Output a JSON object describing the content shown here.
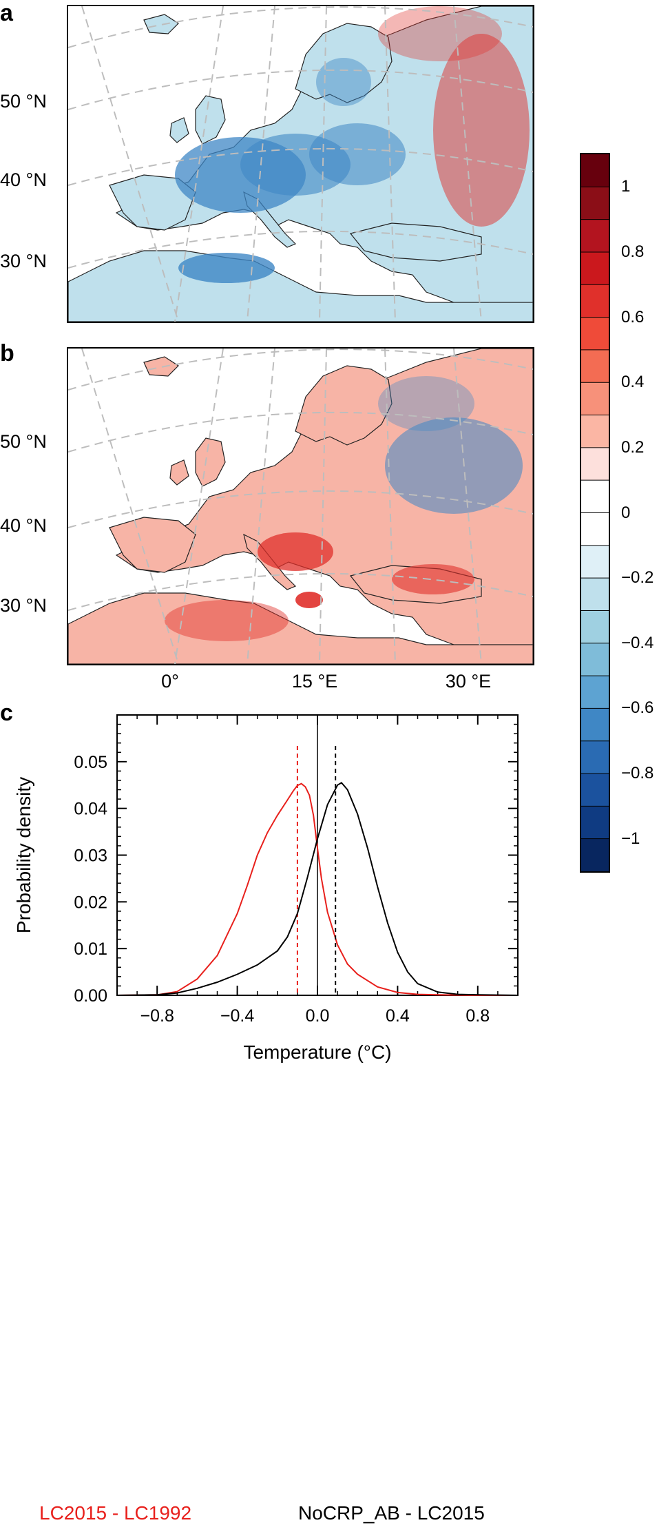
{
  "panels": {
    "a": {
      "letter": "a"
    },
    "b": {
      "letter": "b"
    },
    "c": {
      "letter": "c"
    }
  },
  "maps": {
    "lat_labels": [
      "50 °N",
      "40 °N",
      "30 °N"
    ],
    "lon_labels": [
      "0°",
      "15 °E",
      "30 °E"
    ]
  },
  "colorbar": {
    "labels": [
      "1",
      "0.8",
      "0.6",
      "0.4",
      "0.2",
      "0",
      "−0.2",
      "−0.4",
      "−0.6",
      "−0.8",
      "−1"
    ],
    "colors": [
      "#67000d",
      "#8b0e17",
      "#b3141f",
      "#cb181d",
      "#e0302b",
      "#ef4b39",
      "#f36c53",
      "#f7917a",
      "#fbb6a4",
      "#fde0dc",
      "#ffffff",
      "#ffffff",
      "#dff0f7",
      "#bfe0ec",
      "#9fd0e1",
      "#7fbcd9",
      "#5da3d2",
      "#3f87c5",
      "#2a6bb3",
      "#1b529e",
      "#0f3b82",
      "#08265f"
    ],
    "map_colors": {
      "land_warm": "#f7b4a6",
      "land_cool": "#bfe0ec",
      "cool_strong": "#3f87c5",
      "warm_strong": "#e0302b",
      "sea": "#ffffff",
      "grid": "#bdbdbd",
      "coast": "#222222"
    }
  },
  "chart_data": {
    "type": "line",
    "ylabel": "Probability density",
    "xlabel": "Temperature (°C)",
    "xlim": [
      -1.0,
      1.0
    ],
    "ylim": [
      0.0,
      0.06
    ],
    "xticks": [
      -0.8,
      -0.4,
      0.0,
      0.4,
      0.8
    ],
    "xtick_labels": [
      "−0.8",
      "−0.4",
      "0.0",
      "0.4",
      "0.8"
    ],
    "yticks": [
      0.0,
      0.01,
      0.02,
      0.03,
      0.04,
      0.05
    ],
    "ytick_labels": [
      "0.00",
      "0.01",
      "0.02",
      "0.03",
      "0.04",
      "0.05"
    ],
    "grid": false,
    "series": [
      {
        "name": "LC2015 - LC1992",
        "color": "#e8201c",
        "mean": -0.1,
        "x": [
          -1.0,
          -0.8,
          -0.7,
          -0.6,
          -0.5,
          -0.4,
          -0.35,
          -0.3,
          -0.25,
          -0.2,
          -0.15,
          -0.12,
          -0.1,
          -0.08,
          -0.06,
          -0.04,
          -0.02,
          0.0,
          0.02,
          0.05,
          0.1,
          0.15,
          0.2,
          0.3,
          0.4,
          0.5,
          0.6,
          0.8,
          1.0
        ],
        "values": [
          0.0,
          0.0001,
          0.0008,
          0.0035,
          0.0085,
          0.0175,
          0.0235,
          0.03,
          0.0348,
          0.0385,
          0.0418,
          0.0438,
          0.0449,
          0.0453,
          0.0446,
          0.0428,
          0.0385,
          0.0315,
          0.025,
          0.0178,
          0.0108,
          0.0067,
          0.0045,
          0.0018,
          0.0006,
          0.0002,
          0.0001,
          0.0,
          0.0
        ]
      },
      {
        "name": "NoCRP_AB - LC2015",
        "color": "#000000",
        "mean": 0.09,
        "x": [
          -1.0,
          -0.8,
          -0.7,
          -0.6,
          -0.5,
          -0.4,
          -0.3,
          -0.2,
          -0.15,
          -0.1,
          -0.05,
          0.0,
          0.05,
          0.1,
          0.12,
          0.15,
          0.2,
          0.25,
          0.3,
          0.35,
          0.4,
          0.45,
          0.5,
          0.6,
          0.7,
          0.8,
          1.0
        ],
        "values": [
          0.0,
          0.0001,
          0.0005,
          0.0015,
          0.0028,
          0.0045,
          0.0065,
          0.0095,
          0.0125,
          0.0175,
          0.0252,
          0.0335,
          0.0408,
          0.045,
          0.0455,
          0.044,
          0.0388,
          0.0315,
          0.0232,
          0.0155,
          0.0092,
          0.005,
          0.0025,
          0.0007,
          0.0002,
          0.0001,
          0.0
        ]
      }
    ]
  }
}
